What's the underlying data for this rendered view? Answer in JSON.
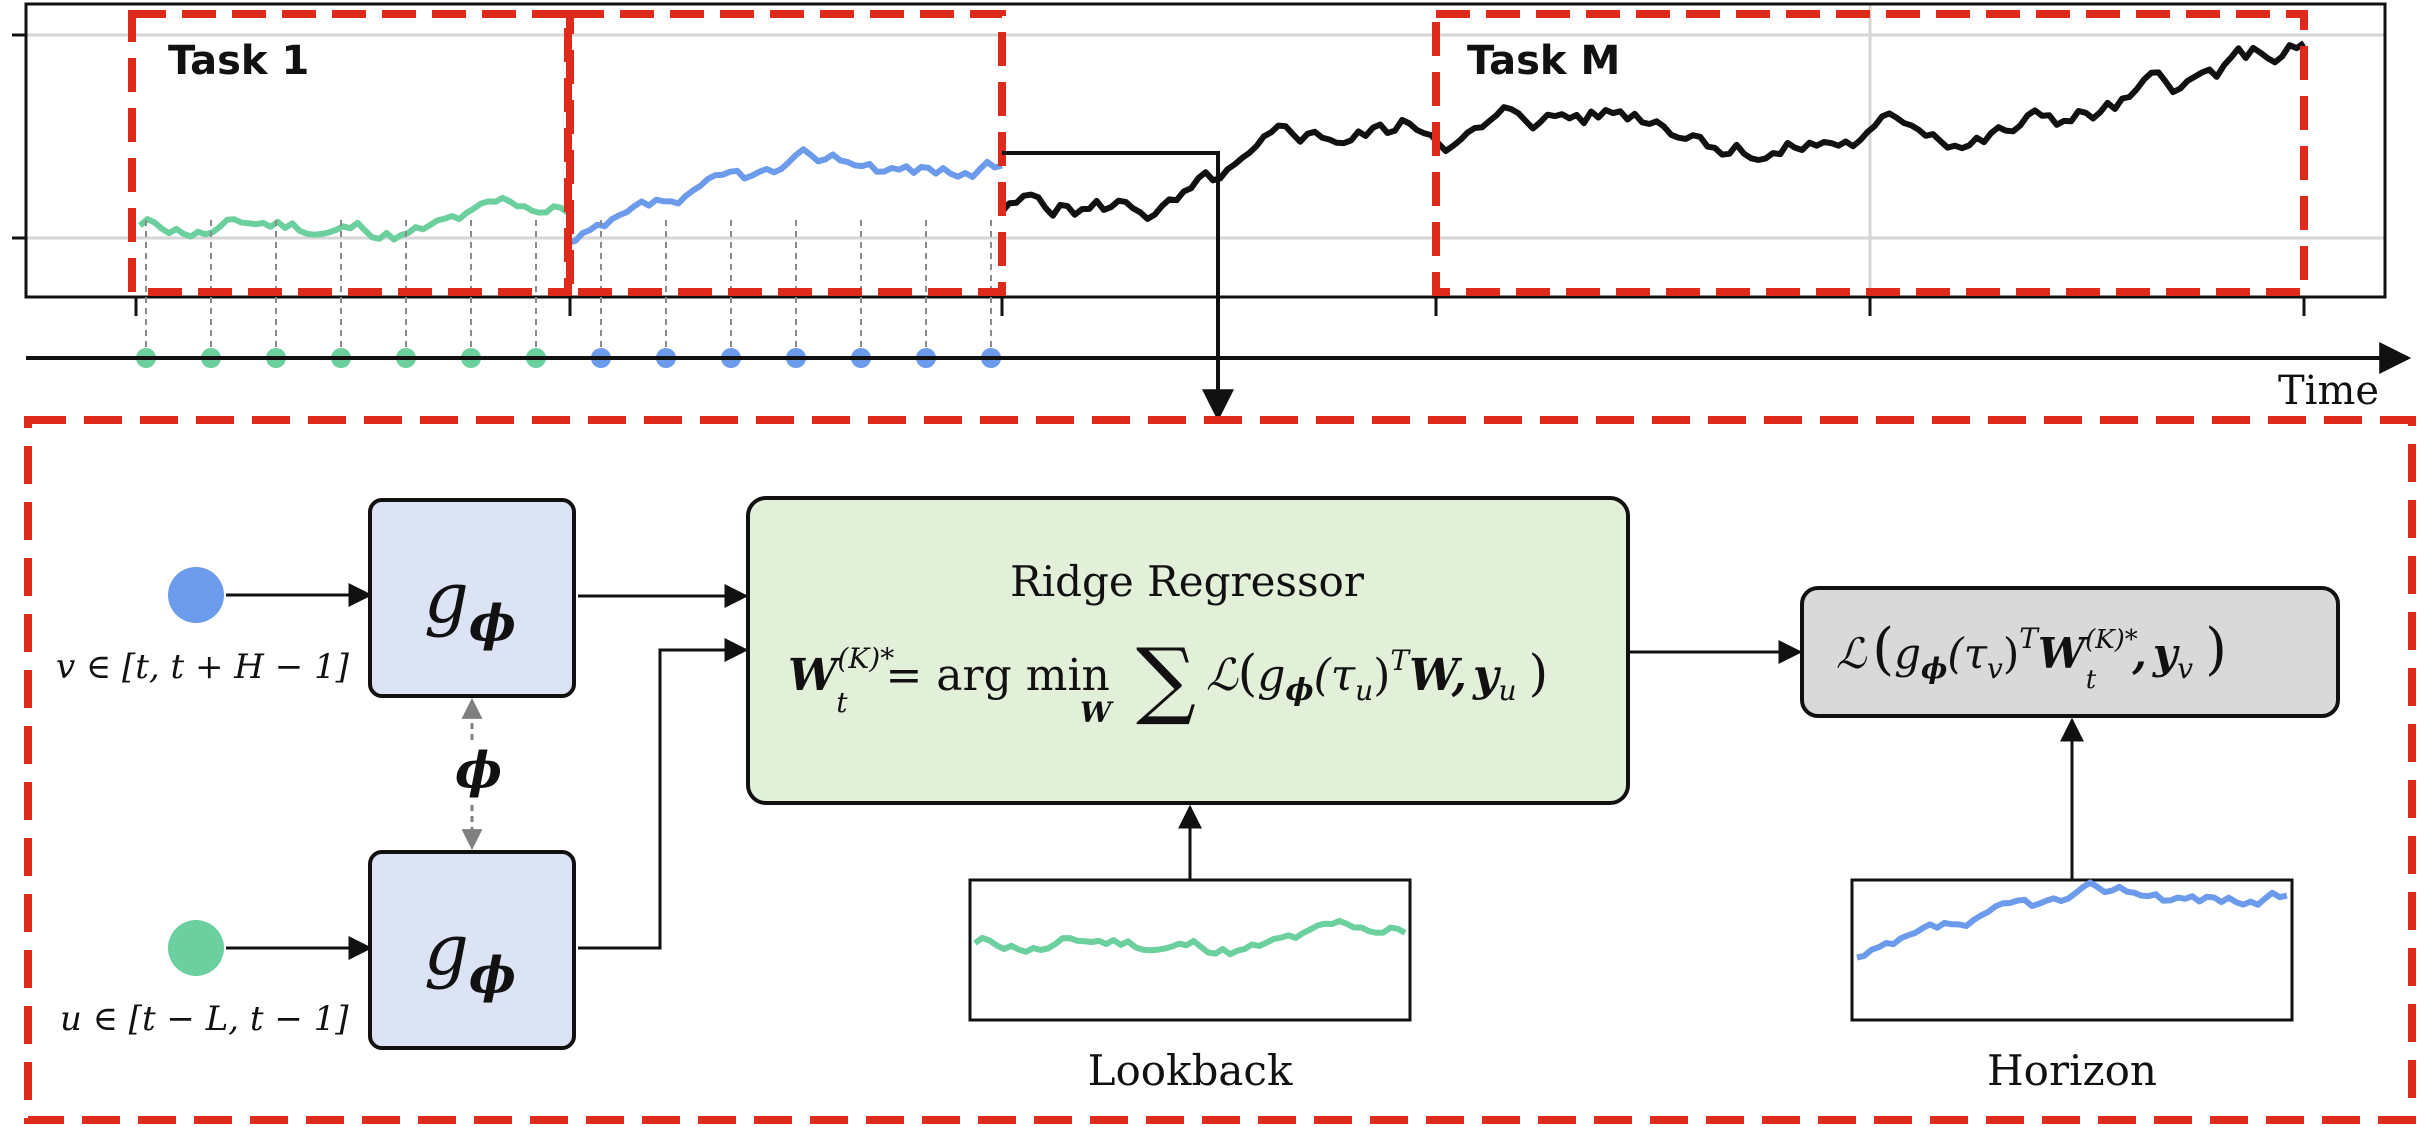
{
  "colors": {
    "task_box": "#dd2a1b",
    "lookback": "#6bcf9e",
    "horizon": "#6b9bea",
    "series": "#111111",
    "g_box_fill": "#dbe3f4",
    "ridge_fill": "#e2efd9",
    "loss_fill": "#d9d9d9",
    "axis": "#111111",
    "dashed_arrow": "#808080"
  },
  "top_plot": {
    "task_labels": {
      "first": "Task 1",
      "last": "Task M"
    },
    "time_label": "Time"
  },
  "inputs": {
    "v_label": "v ∈ [t, t + H − 1]",
    "u_label": "u ∈ [t − L, t − 1]",
    "phi_label": "ϕ",
    "g_label_main": "g",
    "g_label_sub": "ϕ"
  },
  "ridge": {
    "title": "Ridge Regressor",
    "W": "W",
    "W_sup": "(K)*",
    "W_sub": "t",
    "eq_text": "= arg min",
    "argmin_sub": "W",
    "sum": "∑",
    "loss_L": "ℒ",
    "g": "g",
    "g_sub": "ϕ",
    "tau": "(τ",
    "tau_sub": "u",
    "tau_close": ")",
    "transpose": "T",
    "W2": "W",
    "comma": ",",
    "y": "y",
    "y_sub": "u",
    "close": ")"
  },
  "loss_box": {
    "L": "ℒ",
    "g": "g",
    "g_sub": "ϕ",
    "tau": "(τ",
    "tau_sub": "v",
    "tau_close": ")",
    "transpose": "T",
    "W": "W",
    "W_sup": "(K)*",
    "W_sub": "t",
    "comma": ",",
    "y": "y",
    "y_sub": "v",
    "close": ")"
  },
  "thumbnails": {
    "lookback_label": "Lookback",
    "horizon_label": "Horizon"
  }
}
